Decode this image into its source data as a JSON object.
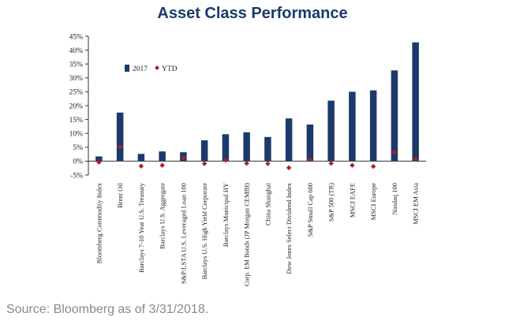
{
  "source_note": "Source: Bloomberg as of 3/31/2018.",
  "colors": {
    "bar": "#1b3a6b",
    "marker": "#b01e24",
    "axis": "#333333",
    "title": "#1b3a6b"
  },
  "chart_data": {
    "type": "bar",
    "title": "Asset Class Performance",
    "xlabel": "",
    "ylabel": "",
    "ylim": [
      -5,
      45
    ],
    "yticks": [
      "-5%",
      "0%",
      "5%",
      "10%",
      "15%",
      "20%",
      "25%",
      "30%",
      "35%",
      "40%",
      "45%"
    ],
    "ytick_values": [
      -5,
      0,
      5,
      10,
      15,
      20,
      25,
      30,
      35,
      40,
      45
    ],
    "grid": false,
    "legend_position": "top-left",
    "categories": [
      "Bloomberg Commodity Index",
      "Brent Oil",
      "Barclays 7-10 Year U.S. Treasury",
      "Barclays U.S. Aggregate",
      "S&P/LSTA U.S. Leveraged Loan 100",
      "Barclays U.S. High Yield Corporate",
      "Barclays Municipal HY",
      "Corp. EM Bonds (JP Morgan CEMBI)",
      "China Shanghai",
      "Dow Jones Select Dividend Index",
      "S&P Small Cap 600",
      "S&P 500 (TR)",
      "MSCI EAFE",
      "MSCI Europe",
      "Nasdaq 100",
      "MSCI EM Asia"
    ],
    "series": [
      {
        "name": "2017",
        "kind": "bar",
        "values": [
          1.7,
          17.5,
          2.6,
          3.5,
          3.2,
          7.5,
          9.7,
          10.4,
          8.7,
          15.4,
          13.2,
          21.8,
          25.0,
          25.5,
          32.7,
          42.8
        ]
      },
      {
        "name": "YTD",
        "kind": "marker",
        "values": [
          -0.4,
          5.1,
          -1.8,
          -1.5,
          1.2,
          -0.9,
          0.3,
          -0.8,
          -0.9,
          -2.4,
          0.5,
          -0.8,
          -1.5,
          -1.9,
          3.2,
          0.7
        ]
      }
    ]
  }
}
